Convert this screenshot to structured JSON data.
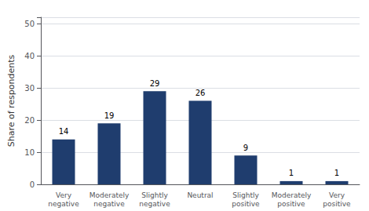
{
  "chart_data": {
    "type": "bar",
    "categories": [
      "Very\nnegative",
      "Moderately\nnegative",
      "Slightly\nnegative",
      "Neutral",
      "Slightly\npositive",
      "Moderately\npositive",
      "Very\npositive"
    ],
    "values": [
      14,
      19,
      29,
      26,
      9,
      1,
      1
    ],
    "color": "#1f3d6e",
    "ylabel": "Share of respondents",
    "ylim": [
      0,
      52
    ],
    "yticks": [
      0,
      10,
      20,
      30,
      40,
      50
    ],
    "grid": true,
    "data_labels": true
  }
}
